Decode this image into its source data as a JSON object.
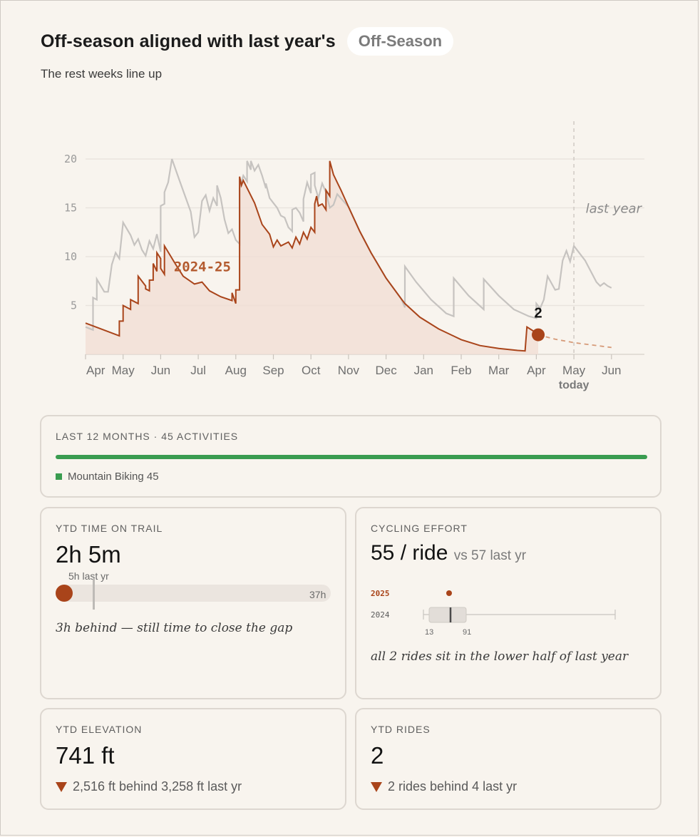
{
  "header": {
    "title": "Off-season aligned with last year's",
    "badge": "Off-Season",
    "subtitle": "The rest weeks line up"
  },
  "chart_data": {
    "type": "area",
    "y_ticks": [
      "5",
      "10",
      "15",
      "20"
    ],
    "ylim": [
      0,
      20
    ],
    "months": [
      "Apr",
      "May",
      "Jun",
      "Jul",
      "Aug",
      "Sep",
      "Oct",
      "Nov",
      "Dec",
      "Jan",
      "Feb",
      "Mar",
      "Apr",
      "May",
      "Jun"
    ],
    "today_label": "today",
    "grid": true,
    "series": [
      {
        "name": "2024-25",
        "color": "#a9441a",
        "points": [
          [
            0,
            3.2
          ],
          [
            0.9,
            1.9
          ],
          [
            0.9,
            3.4
          ],
          [
            1.0,
            3.4
          ],
          [
            1.0,
            5.0
          ],
          [
            1.2,
            4.6
          ],
          [
            1.2,
            5.6
          ],
          [
            1.4,
            5.2
          ],
          [
            1.4,
            8.0
          ],
          [
            1.6,
            7.0
          ],
          [
            1.6,
            6.7
          ],
          [
            1.7,
            6.5
          ],
          [
            1.7,
            7.6
          ],
          [
            1.8,
            7.6
          ],
          [
            1.8,
            9.3
          ],
          [
            1.9,
            8.5
          ],
          [
            1.9,
            10.4
          ],
          [
            2.0,
            9.8
          ],
          [
            2.0,
            8.8
          ],
          [
            2.1,
            8.2
          ],
          [
            2.1,
            11.1
          ],
          [
            2.4,
            9.2
          ],
          [
            2.6,
            8.0
          ],
          [
            2.9,
            7.2
          ],
          [
            3.1,
            7.4
          ],
          [
            3.3,
            6.5
          ],
          [
            3.6,
            5.9
          ],
          [
            3.9,
            5.5
          ],
          [
            3.9,
            6.3
          ],
          [
            4.0,
            5.2
          ],
          [
            4.0,
            6.6
          ],
          [
            4.1,
            6.6
          ],
          [
            4.1,
            18.2
          ],
          [
            4.15,
            17.3
          ],
          [
            4.2,
            17.8
          ],
          [
            4.5,
            15.5
          ],
          [
            4.7,
            13.3
          ],
          [
            4.9,
            12.3
          ],
          [
            5.0,
            11.0
          ],
          [
            5.1,
            11.7
          ],
          [
            5.2,
            11.1
          ],
          [
            5.4,
            11.5
          ],
          [
            5.5,
            10.9
          ],
          [
            5.6,
            12.0
          ],
          [
            5.7,
            11.3
          ],
          [
            5.8,
            12.5
          ],
          [
            5.9,
            11.8
          ],
          [
            6.0,
            13.0
          ],
          [
            6.1,
            12.5
          ],
          [
            6.1,
            15.4
          ],
          [
            6.15,
            16.2
          ],
          [
            6.2,
            15.2
          ],
          [
            6.3,
            15.4
          ],
          [
            6.4,
            14.8
          ],
          [
            6.4,
            16.8
          ],
          [
            6.5,
            16.2
          ],
          [
            6.5,
            19.8
          ],
          [
            6.6,
            18.4
          ],
          [
            6.7,
            17.6
          ],
          [
            6.8,
            16.8
          ],
          [
            7.0,
            15.1
          ],
          [
            7.3,
            12.6
          ],
          [
            7.6,
            10.4
          ],
          [
            8.0,
            7.8
          ],
          [
            8.4,
            5.7
          ],
          [
            8.5,
            5.2
          ],
          [
            8.9,
            3.8
          ],
          [
            9.4,
            2.6
          ],
          [
            10.0,
            1.5
          ],
          [
            10.5,
            0.9
          ],
          [
            11.0,
            0.6
          ],
          [
            11.5,
            0.4
          ],
          [
            11.7,
            0.35
          ],
          [
            11.75,
            2.8
          ],
          [
            12.0,
            2.2
          ],
          [
            12.05,
            2.0
          ]
        ]
      },
      {
        "name": "last year",
        "color": "#c6c3c0",
        "points": [
          [
            0,
            2.8
          ],
          [
            0.2,
            2.5
          ],
          [
            0.2,
            5.8
          ],
          [
            0.3,
            5.6
          ],
          [
            0.3,
            7.7
          ],
          [
            0.5,
            6.4
          ],
          [
            0.6,
            6.4
          ],
          [
            0.7,
            9.2
          ],
          [
            0.8,
            10.4
          ],
          [
            0.9,
            9.8
          ],
          [
            1.0,
            13.5
          ],
          [
            1.2,
            12.2
          ],
          [
            1.3,
            11.2
          ],
          [
            1.4,
            11.8
          ],
          [
            1.5,
            10.7
          ],
          [
            1.6,
            10.1
          ],
          [
            1.7,
            11.6
          ],
          [
            1.8,
            10.8
          ],
          [
            1.9,
            12.3
          ],
          [
            2.0,
            10.5
          ],
          [
            2.0,
            15.2
          ],
          [
            2.1,
            15.4
          ],
          [
            2.1,
            16.6
          ],
          [
            2.2,
            17.6
          ],
          [
            2.3,
            20.0
          ],
          [
            2.5,
            17.8
          ],
          [
            2.8,
            14.6
          ],
          [
            2.9,
            12.0
          ],
          [
            3.0,
            12.5
          ],
          [
            3.1,
            15.7
          ],
          [
            3.2,
            16.3
          ],
          [
            3.3,
            14.7
          ],
          [
            3.4,
            16.0
          ],
          [
            3.5,
            15.2
          ],
          [
            3.5,
            17.3
          ],
          [
            3.6,
            16.0
          ],
          [
            3.7,
            13.8
          ],
          [
            3.8,
            12.4
          ],
          [
            3.9,
            12.8
          ],
          [
            4.0,
            11.7
          ],
          [
            4.1,
            11.3
          ],
          [
            4.1,
            17.0
          ],
          [
            4.2,
            18.3
          ],
          [
            4.3,
            17.7
          ],
          [
            4.3,
            19.8
          ],
          [
            4.4,
            18.9
          ],
          [
            4.4,
            19.8
          ],
          [
            4.5,
            18.8
          ],
          [
            4.6,
            19.4
          ],
          [
            4.7,
            18.3
          ],
          [
            4.8,
            17.0
          ],
          [
            4.8,
            17.5
          ],
          [
            4.9,
            16.0
          ],
          [
            5.0,
            15.5
          ],
          [
            5.1,
            15.0
          ],
          [
            5.2,
            14.2
          ],
          [
            5.3,
            14.0
          ],
          [
            5.4,
            13.0
          ],
          [
            5.5,
            12.6
          ],
          [
            5.5,
            14.8
          ],
          [
            5.6,
            15.0
          ],
          [
            5.7,
            14.5
          ],
          [
            5.8,
            13.6
          ],
          [
            5.8,
            15.9
          ],
          [
            5.9,
            17.6
          ],
          [
            6.0,
            16.5
          ],
          [
            6.0,
            18.4
          ],
          [
            6.1,
            18.6
          ],
          [
            6.1,
            17.3
          ],
          [
            6.2,
            16.0
          ],
          [
            6.3,
            17.5
          ],
          [
            6.4,
            16.6
          ],
          [
            6.5,
            15.0
          ],
          [
            6.6,
            15.3
          ],
          [
            6.7,
            16.4
          ],
          [
            7.0,
            15.1
          ],
          [
            7.3,
            12.6
          ],
          [
            7.6,
            10.4
          ],
          [
            8.0,
            7.8
          ],
          [
            8.4,
            5.7
          ],
          [
            8.5,
            4.8
          ],
          [
            8.5,
            9.0
          ],
          [
            8.8,
            7.4
          ],
          [
            9.2,
            5.6
          ],
          [
            9.6,
            4.2
          ],
          [
            9.8,
            3.9
          ],
          [
            9.8,
            7.8
          ],
          [
            10.2,
            6.0
          ],
          [
            10.6,
            4.6
          ],
          [
            10.6,
            7.7
          ],
          [
            11.0,
            6.0
          ],
          [
            11.4,
            4.6
          ],
          [
            11.8,
            3.9
          ],
          [
            12.0,
            3.7
          ],
          [
            12.0,
            5.2
          ],
          [
            12.1,
            4.7
          ],
          [
            12.2,
            5.6
          ],
          [
            12.3,
            8.0
          ],
          [
            12.5,
            6.6
          ],
          [
            12.6,
            6.7
          ],
          [
            12.7,
            9.6
          ],
          [
            12.8,
            10.6
          ],
          [
            12.9,
            9.5
          ],
          [
            13.0,
            11.1
          ],
          [
            13.3,
            9.6
          ],
          [
            13.6,
            7.4
          ],
          [
            13.7,
            7.0
          ],
          [
            13.8,
            7.3
          ],
          [
            13.9,
            7.0
          ],
          [
            14.0,
            6.8
          ]
        ]
      },
      {
        "name": "projection",
        "color": "#d69a78",
        "points": [
          [
            12.05,
            2.0
          ],
          [
            12.5,
            1.55
          ],
          [
            13.0,
            1.2
          ],
          [
            13.5,
            0.95
          ],
          [
            14.0,
            0.7
          ]
        ]
      }
    ],
    "label_2024": "2024-25",
    "label_last_year": "last year",
    "current_value": "2"
  },
  "cards": {
    "activities": {
      "label": "LAST 12 MONTHS · 45 ACTIVITIES",
      "legend": "Mountain Biking 45",
      "bar_color": "#3a9c50",
      "fraction": 1.0
    },
    "time": {
      "label": "YTD TIME ON TRAIL",
      "value": "2h 5m",
      "last_label": "5h last yr",
      "max_label": "37h",
      "current_hours": 2.08,
      "last_hours": 5,
      "max_hours": 37,
      "note": "3h behind — still time to close the gap"
    },
    "effort": {
      "label": "CYCLING EFFORT",
      "value": "55 / ride",
      "compare": "vs 57 last yr",
      "row_2025": "2025",
      "row_2024": "2024",
      "min_label": "13",
      "max_label": "91",
      "note": "all 2 rides sit in the lower half of last year"
    },
    "elevation": {
      "label": "YTD ELEVATION",
      "value": "741 ft",
      "delta": "2,516 ft behind 3,258 ft last yr"
    },
    "rides": {
      "label": "YTD RIDES",
      "value": "2",
      "delta": "2 rides behind 4 last yr"
    }
  }
}
